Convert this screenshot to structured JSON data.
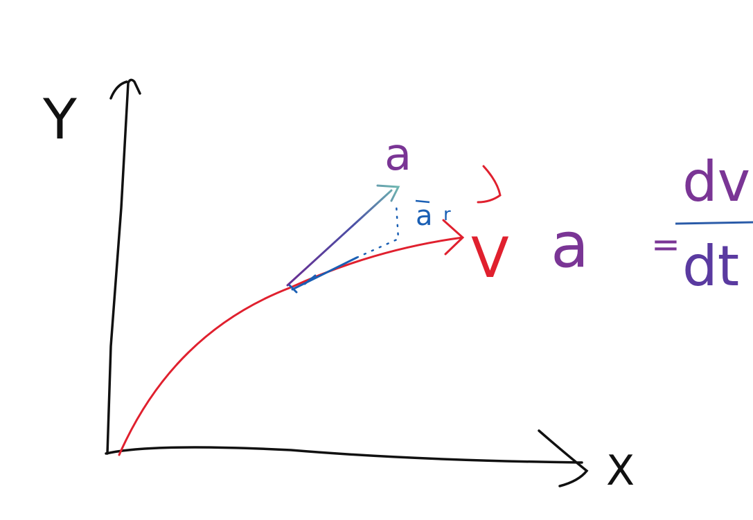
{
  "axes": {
    "y_label": "Y",
    "x_label": "X"
  },
  "labels": {
    "acceleration": "a",
    "velocity": "V",
    "radial_acceleration": "a",
    "radial_subscript": "r"
  },
  "equation": {
    "lhs": "a",
    "equals": "=",
    "numerator": "dv",
    "denominator": "dt"
  }
}
